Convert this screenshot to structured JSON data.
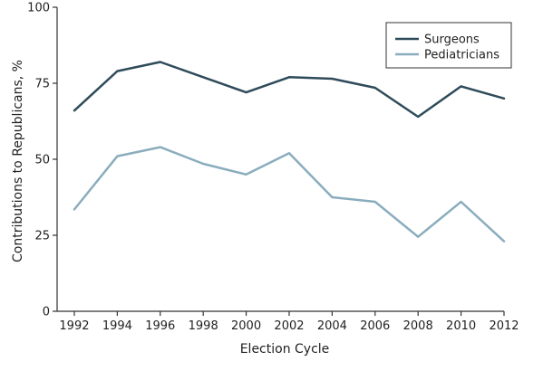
{
  "chart_data": {
    "type": "line",
    "title": "",
    "xlabel": "Election Cycle",
    "ylabel": "Contributions to Republicans, %",
    "x": [
      1992,
      1994,
      1996,
      1998,
      2000,
      2002,
      2004,
      2006,
      2008,
      2010,
      2012
    ],
    "x_tick_labels": [
      "1992",
      "1994",
      "1996",
      "1998",
      "2000",
      "2002",
      "2004",
      "2006",
      "2008",
      "2010",
      "2012"
    ],
    "xlim": [
      1991.2,
      2012
    ],
    "ylim": [
      0,
      100
    ],
    "y_ticks": [
      0,
      25,
      50,
      75,
      100
    ],
    "y_tick_labels": [
      "0",
      "25",
      "50",
      "75",
      "100"
    ],
    "grid": false,
    "legend_position": "top-right",
    "series": [
      {
        "name": "Surgeons",
        "color": "#2f4b5a",
        "values": [
          66,
          79,
          82,
          77,
          72,
          77,
          76.5,
          73.5,
          64,
          74,
          70
        ]
      },
      {
        "name": "Pediatricians",
        "color": "#8aadbd",
        "values": [
          33.5,
          51,
          54,
          48.5,
          45,
          52,
          37.5,
          36,
          24.5,
          36,
          23
        ]
      }
    ]
  }
}
